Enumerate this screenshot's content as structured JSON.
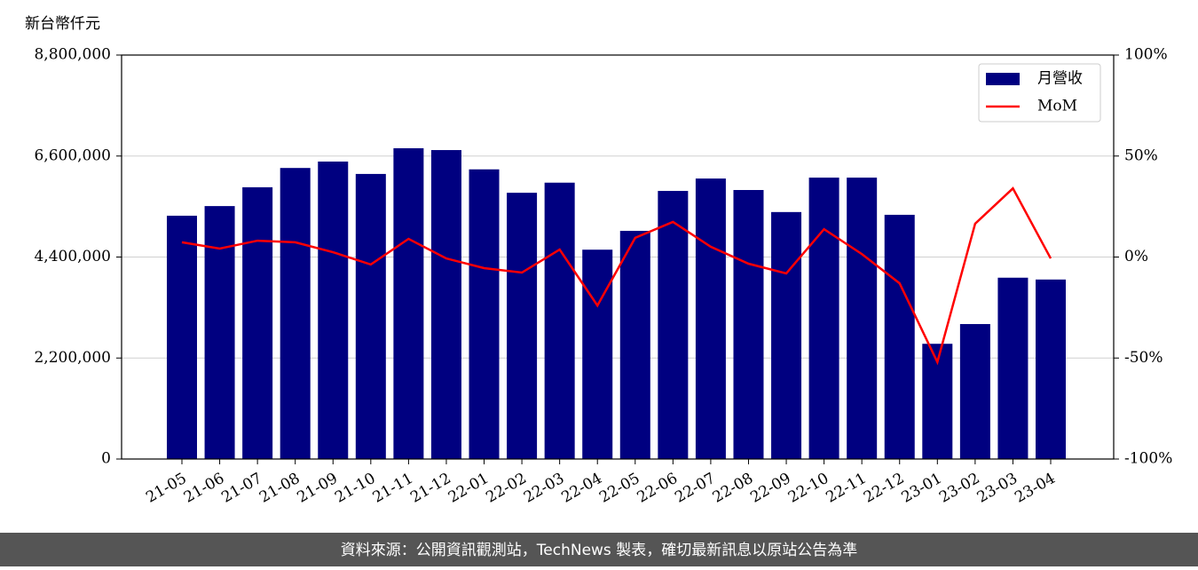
{
  "chart_data": {
    "type": "bar",
    "y_axis_label": "新台幣仟元",
    "footer": "資料來源：公開資訊觀測站，TechNews 製表，確切最新訊息以原站公告為準",
    "categories": [
      "21-05",
      "21-06",
      "21-07",
      "21-08",
      "21-09",
      "21-10",
      "21-11",
      "21-12",
      "22-01",
      "22-02",
      "22-03",
      "22-04",
      "22-05",
      "22-06",
      "22-07",
      "22-08",
      "22-09",
      "22-10",
      "22-11",
      "22-12",
      "23-01",
      "23-02",
      "23-03",
      "23-04"
    ],
    "series": [
      {
        "name": "月營收",
        "type": "bar",
        "color": "#000080",
        "values": [
          5300000,
          5510000,
          5920000,
          6340000,
          6480000,
          6210000,
          6770000,
          6730000,
          6310000,
          5800000,
          6020000,
          4560000,
          4970000,
          5840000,
          6110000,
          5860000,
          5380000,
          6130000,
          6130000,
          5320000,
          2510000,
          2940000,
          3950000,
          3910000
        ]
      },
      {
        "name": "MoM",
        "type": "line",
        "color": "#ff0000",
        "axis": "y2",
        "values": [
          7.3,
          4.2,
          8.1,
          7.3,
          2.4,
          -3.7,
          9.0,
          -0.7,
          -5.5,
          -7.7,
          3.7,
          -24,
          9.5,
          17.4,
          5.1,
          -3.3,
          -8.1,
          13.8,
          1.5,
          -13,
          -52,
          16.5,
          34,
          -0.7
        ]
      }
    ],
    "ylim": [
      0,
      8800000
    ],
    "yticks": [
      0,
      {
        "value": 2200000,
        "label": "2,200,000"
      },
      {
        "value": 4400000,
        "label": "4,400,000"
      },
      {
        "value": 6600000,
        "label": "6,600,000"
      },
      {
        "value": 8800000,
        "label": "8,800,000"
      }
    ],
    "y2lim": [
      -100,
      100
    ],
    "y2ticks": [
      {
        "value": -100,
        "label": "-100%"
      },
      {
        "value": -50,
        "label": "-50%"
      },
      {
        "value": 0,
        "label": "0%"
      },
      {
        "value": 50,
        "label": "50%"
      },
      {
        "value": 100,
        "label": "100%"
      }
    ],
    "grid": true,
    "legend": "upper right"
  }
}
